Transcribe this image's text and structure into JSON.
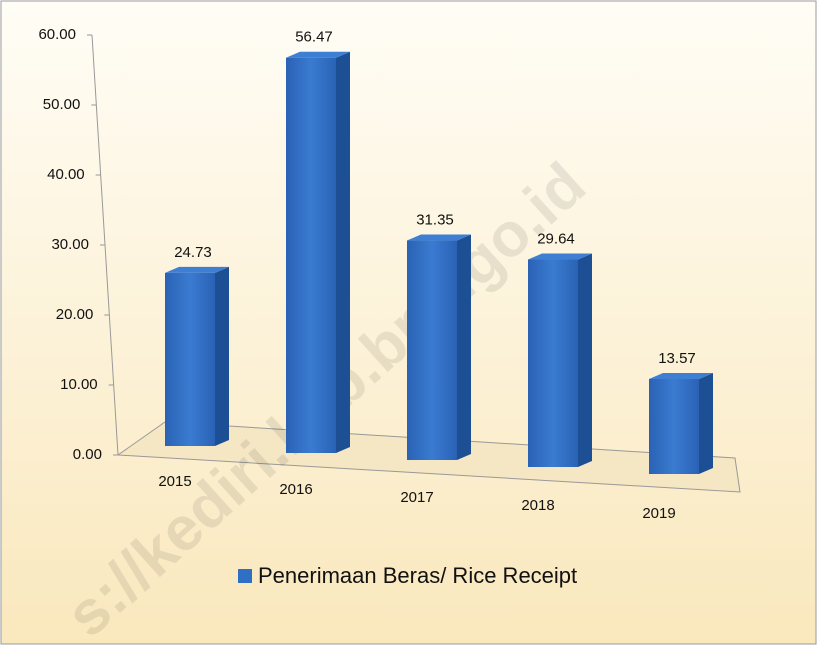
{
  "chart_data": {
    "type": "bar",
    "categories": [
      "2015",
      "2016",
      "2017",
      "2018",
      "2019"
    ],
    "series": [
      {
        "name": "Penerimaan Beras/ Rice Receipt",
        "color": "#2f6fc4",
        "values": [
          24.73,
          56.47,
          31.35,
          29.64,
          13.57
        ]
      }
    ],
    "ylim": [
      0,
      60
    ],
    "yticks": [
      {
        "value": 0,
        "label": "0.00"
      },
      {
        "value": 10,
        "label": "10.00"
      },
      {
        "value": 20,
        "label": "20.00"
      },
      {
        "value": 30,
        "label": "30.00"
      },
      {
        "value": 40,
        "label": "40.00"
      },
      {
        "value": 50,
        "label": "50.00"
      },
      {
        "value": 60,
        "label": "60.00"
      }
    ],
    "grid": false,
    "legend": "bottom",
    "watermark": "s://kediri.kab.bps.go.id"
  }
}
